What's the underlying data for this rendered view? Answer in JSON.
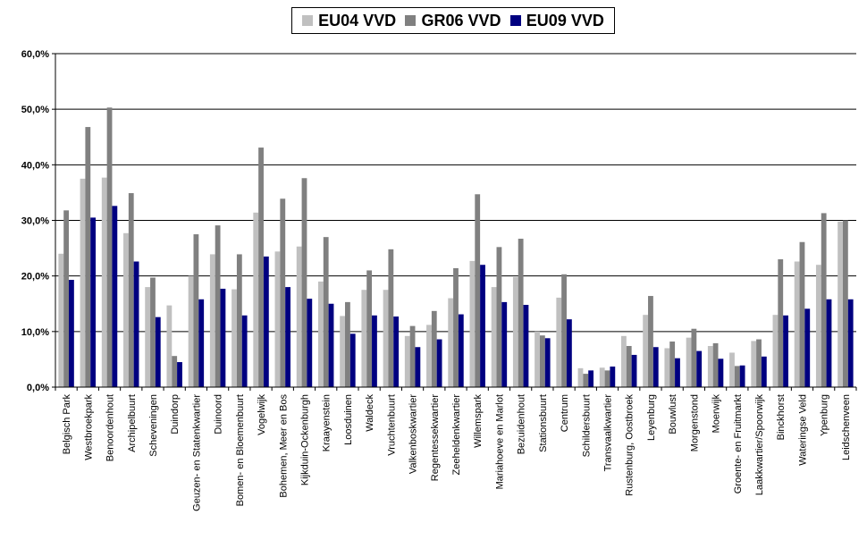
{
  "chart_data": {
    "type": "bar",
    "ylim": [
      0,
      60
    ],
    "yticks": [
      "0,0%",
      "10,0%",
      "20,0%",
      "30,0%",
      "40,0%",
      "50,0%",
      "60,0%"
    ],
    "grid": true,
    "legend_position": "top-center",
    "categories": [
      "Belgisch Park",
      "Westbroekpark",
      "Benoordenhout",
      "Archipelbuurt",
      "Scheveningen",
      "Duindorp",
      "Geuzen- en Statenkwartier",
      "Duinoord",
      "Bomen- en Bloemenbuurt",
      "Vogelwijk",
      "Bohemen, Meer en Bos",
      "Kijkduin-Ockenburgh",
      "Kraayenstein",
      "Loosduinen",
      "Waldeck",
      "Vruchtenbuurt",
      "Valkenboskwartier",
      "Regentessekwartier",
      "Zeeheldenkwartier",
      "Willemspark",
      "Mariahoeve en Marlot",
      "Bezuidenhout",
      "Stationsbuurt",
      "Centrum",
      "Schildersbuurt",
      "Transvaalkwartier",
      "Rustenburg, Oostbroek",
      "Leyenburg",
      "Bouwlust",
      "Morgenstond",
      "Moerwijk",
      "Groente- en Fruitmarkt",
      "Laakkwartier/Spoorwijk",
      "Binckhorst",
      "Wateringse Veld",
      "Ypenburg",
      "Leidschenveen"
    ],
    "series": [
      {
        "name": "EU04 VVD",
        "color": "#c0c0c0",
        "values": [
          24.0,
          37.5,
          37.7,
          27.7,
          18.0,
          14.7,
          20.0,
          23.9,
          17.6,
          31.4,
          24.4,
          25.3,
          19.0,
          12.8,
          17.5,
          17.5,
          9.2,
          11.2,
          16.0,
          22.7,
          18.0,
          19.8,
          10.0,
          16.1,
          3.4,
          3.5,
          9.2,
          13.0,
          7.0,
          8.9,
          7.4,
          6.2,
          8.3,
          13.0,
          22.6,
          22.0,
          29.8
        ]
      },
      {
        "name": "GR06 VVD",
        "color": "#808080",
        "values": [
          31.8,
          46.8,
          50.3,
          34.9,
          19.7,
          5.6,
          27.5,
          29.1,
          23.9,
          43.1,
          33.9,
          37.6,
          27.0,
          15.3,
          21.0,
          24.8,
          11.0,
          13.7,
          21.4,
          34.7,
          25.2,
          26.7,
          9.3,
          20.3,
          2.4,
          3.0,
          7.4,
          16.4,
          8.2,
          10.5,
          7.9,
          3.8,
          8.6,
          23.0,
          26.1,
          31.3,
          30.0
        ]
      },
      {
        "name": "EU09 VVD",
        "color": "#000080",
        "values": [
          19.3,
          30.5,
          32.6,
          22.6,
          12.6,
          4.5,
          15.8,
          17.7,
          12.9,
          23.5,
          18.0,
          15.9,
          15.0,
          9.6,
          12.9,
          12.7,
          7.2,
          8.6,
          13.1,
          22.0,
          15.3,
          14.8,
          8.8,
          12.2,
          3.0,
          3.7,
          5.8,
          7.2,
          5.2,
          6.5,
          5.1,
          3.9,
          5.5,
          12.9,
          14.1,
          15.8,
          15.8
        ]
      }
    ]
  }
}
